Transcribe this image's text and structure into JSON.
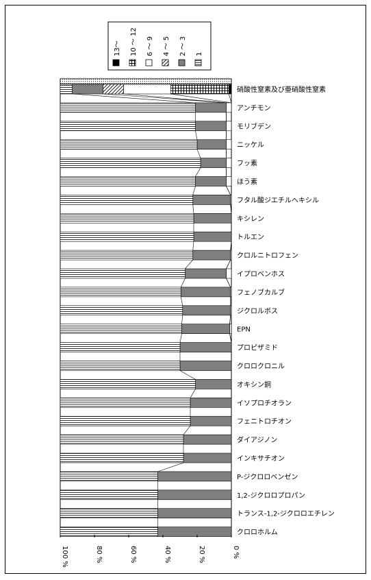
{
  "chart_data": {
    "type": "bar",
    "orientation": "horizontal-stacked-100",
    "x_direction": "reversed",
    "xlim": [
      0,
      100
    ],
    "x_ticks": [
      "100 %",
      "80 %",
      "60 %",
      "40 %",
      "20 %",
      "0 %"
    ],
    "grid": false,
    "legend_position": "top-center",
    "legend": [
      {
        "label": "13～",
        "pattern": "solid-black"
      },
      {
        "label": "10 ～ 12",
        "pattern": "grid"
      },
      {
        "label": "6 ～ 9",
        "pattern": "white"
      },
      {
        "label": "4 ～ 5",
        "pattern": "diagonal"
      },
      {
        "label": "2 ～ 3",
        "pattern": "gray"
      },
      {
        "label": "1",
        "pattern": "horizontal-lines"
      }
    ],
    "colors": {
      "gray": "#7f7f7f",
      "black": "#000000",
      "white": "#ffffff"
    },
    "categories": [
      "硝酸性窒素及び亜硝酸性窒素",
      "アンチモン",
      "モリブデン",
      "ニッケル",
      "フッ素",
      "ほう素",
      "フタル酸ジエチルヘキシル",
      "キシレン",
      "トルエン",
      "クロルニトロフェン",
      "イプロベンホス",
      "フェノブカルブ",
      "ジクロルボス",
      "EPN",
      "プロピザミド",
      "クロロクロニル",
      "オキシン銅",
      "イソプロチオラン",
      "フェニトロチオン",
      "ダイアジノン",
      "インキサチオン",
      "P-ジクロロベンゼン",
      "1,2-ジクロロプロパン",
      "トランス-1,2-ジクロロエチレン",
      "クロロホルム"
    ],
    "series": [
      {
        "name": "13～",
        "values": [
          1.5,
          0,
          0,
          0,
          0,
          0,
          0,
          0,
          0,
          0,
          0,
          0,
          0,
          0,
          0,
          0,
          0,
          0,
          0,
          0,
          0,
          0,
          0,
          0,
          0
        ]
      },
      {
        "name": "10 ～ 12",
        "values": [
          34,
          0,
          0,
          0,
          0,
          0,
          0,
          0,
          0,
          0,
          0,
          0,
          0,
          0,
          0,
          0,
          0,
          0,
          0,
          0,
          0,
          0,
          0,
          0,
          0
        ]
      },
      {
        "name": "6 ～ 9",
        "values": [
          27.5,
          3,
          3,
          3,
          3,
          3,
          0.5,
          0,
          0,
          0.5,
          3,
          0.5,
          0.5,
          1,
          0,
          0,
          0,
          0,
          0,
          0,
          0,
          0,
          0,
          0,
          0
        ]
      },
      {
        "name": "4 ～ 5",
        "values": [
          12,
          0,
          0,
          0,
          0,
          0,
          0,
          0,
          0,
          0,
          0,
          0,
          0,
          0,
          0,
          0,
          0,
          0,
          0,
          0,
          0,
          0,
          0,
          0,
          0
        ]
      },
      {
        "name": "2 ～ 3",
        "values": [
          18,
          18,
          18,
          17,
          15,
          18,
          22,
          22,
          22,
          22,
          24,
          29,
          28,
          28,
          30,
          30,
          21,
          24,
          24,
          28,
          28,
          43,
          43,
          43,
          43
        ]
      },
      {
        "name": "1",
        "values": [
          7,
          79,
          79,
          80,
          82,
          79,
          77.5,
          78,
          78,
          77.5,
          73,
          70.5,
          71.5,
          71,
          70,
          70,
          79,
          76,
          76,
          72,
          72,
          57,
          57,
          57,
          57
        ]
      }
    ]
  }
}
